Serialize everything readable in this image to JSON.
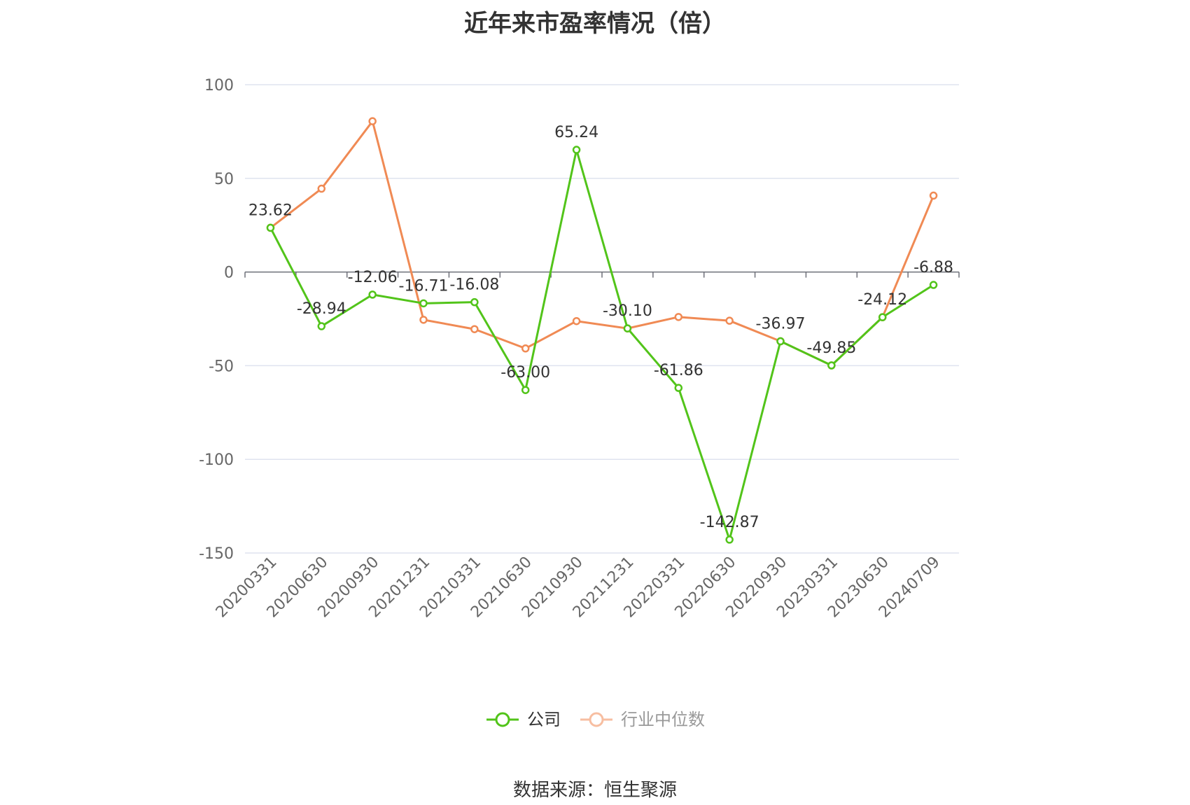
{
  "chart_data": {
    "type": "line",
    "title": "近年来市盈率情况（倍）",
    "categories": [
      "20200331",
      "20200630",
      "20200930",
      "20201231",
      "20210331",
      "20210630",
      "20210930",
      "20211231",
      "20220331",
      "20220630",
      "20220930",
      "20230331",
      "20230630",
      "20240709"
    ],
    "series": [
      {
        "name": "公司",
        "color": "#52c41a",
        "values": [
          23.62,
          -28.94,
          -12.06,
          -16.71,
          -16.08,
          -63.0,
          65.24,
          -30.1,
          -61.86,
          -142.87,
          -36.97,
          -49.85,
          -24.12,
          -6.88
        ],
        "labels": [
          "23.62",
          "-28.94",
          "-12.06",
          "-16.71",
          "-16.08",
          "-63.00",
          "65.24",
          "-30.10",
          "-61.86",
          "-142.87",
          "-36.97",
          "-49.85",
          "-24.12",
          "-6.88"
        ]
      },
      {
        "name": "行业中位数",
        "color": "#f08a54",
        "values": [
          23.62,
          44.5,
          80.5,
          -25.5,
          -30.5,
          -40.8,
          -26.2,
          -30.1,
          -24.0,
          -26.0,
          -36.97,
          -49.85,
          -24.12,
          40.8
        ]
      }
    ],
    "ylim": [
      -150,
      100
    ],
    "yticks": [
      "100",
      "50",
      "0",
      "-50",
      "-100",
      "-150"
    ],
    "legend": "bottom-center",
    "grid": true
  },
  "source": "数据来源：恒生聚源"
}
